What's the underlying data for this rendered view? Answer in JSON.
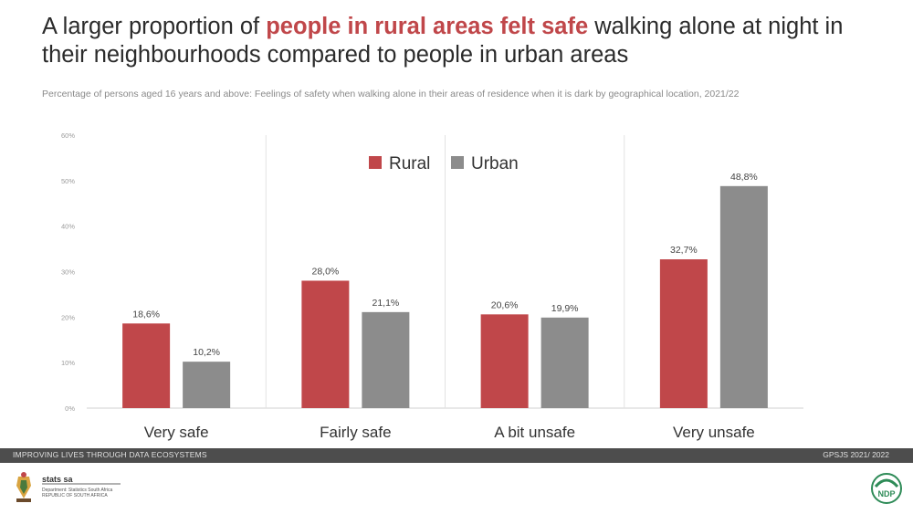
{
  "title": {
    "part1": "A larger proportion of ",
    "highlight": "people in rural areas felt safe",
    "part2": " walking alone at night in their neighbourhoods compared to people in urban areas"
  },
  "subtitle": "Percentage of persons aged 16 years and above: Feelings of safety when walking alone in their areas of residence when it is dark by geographical location, 2021/22",
  "footer": {
    "left": "IMPROVING LIVES THROUGH DATA ECOSYSTEMS",
    "right": "GPSJS 2021/ 2022"
  },
  "logos": {
    "left_text": "stats sa",
    "left_sub": "Department: Statistics South Africa REPUBLIC OF SOUTH AFRICA",
    "right_text": "NDP"
  },
  "colors": {
    "rural": "#c0474a",
    "urban": "#8c8c8c",
    "title_highlight": "#c0474a",
    "footer": "#4d4d4d"
  },
  "chart_data": {
    "type": "bar",
    "categories": [
      "Very safe",
      "Fairly safe",
      "A bit unsafe",
      "Very unsafe"
    ],
    "series": [
      {
        "name": "Rural",
        "values": [
          18.6,
          28.0,
          20.6,
          32.7
        ],
        "labels": [
          "18,6%",
          "28,0%",
          "20,6%",
          "32,7%"
        ]
      },
      {
        "name": "Urban",
        "values": [
          10.2,
          21.1,
          19.9,
          48.8
        ],
        "labels": [
          "10,2%",
          "21,1%",
          "19,9%",
          "48,8%"
        ]
      }
    ],
    "ylim": [
      0,
      60
    ],
    "yticks": [
      "0%",
      "10%",
      "20%",
      "30%",
      "40%",
      "50%",
      "60%"
    ],
    "legend_position": "top-center",
    "grid": false
  }
}
